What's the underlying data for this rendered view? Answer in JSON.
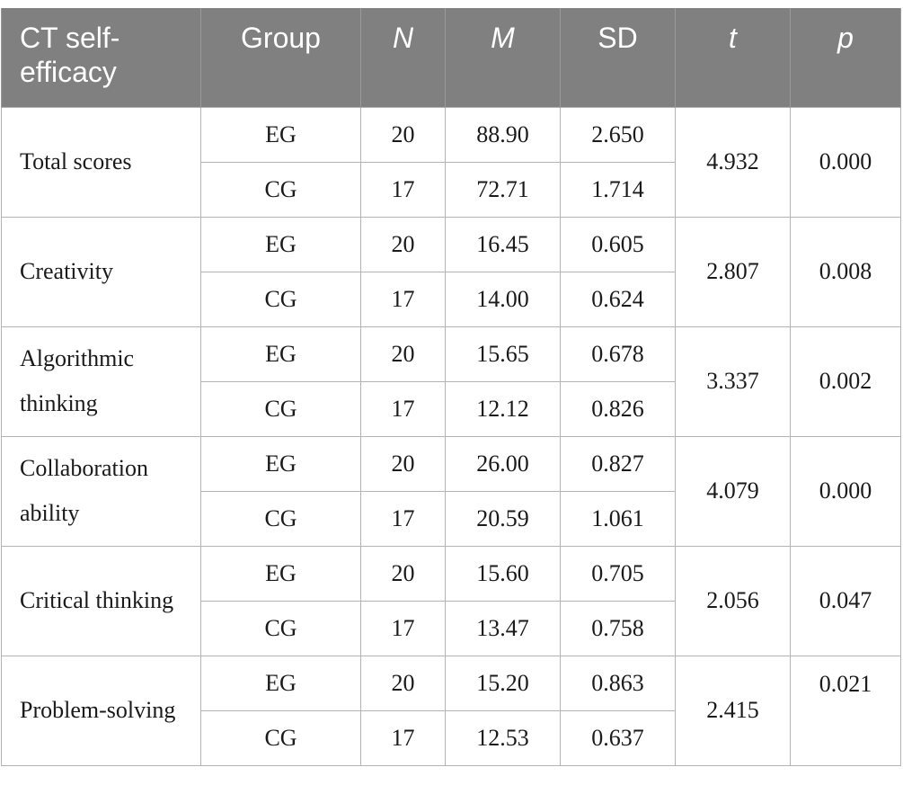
{
  "table": {
    "headers": {
      "construct": "CT self-efficacy",
      "group": "Group",
      "n": "N",
      "m": "M",
      "sd": "SD",
      "t": "t",
      "p": "p"
    },
    "rows": [
      {
        "construct": "Total scores",
        "t": "4.932",
        "p": "0.000",
        "groups": [
          {
            "group": "EG",
            "n": "20",
            "m": "88.90",
            "sd": "2.650"
          },
          {
            "group": "CG",
            "n": "17",
            "m": "72.71",
            "sd": "1.714"
          }
        ]
      },
      {
        "construct": "Creativity",
        "t": "2.807",
        "p": "0.008",
        "groups": [
          {
            "group": "EG",
            "n": "20",
            "m": "16.45",
            "sd": "0.605"
          },
          {
            "group": "CG",
            "n": "17",
            "m": "14.00",
            "sd": "0.624"
          }
        ]
      },
      {
        "construct": "Algorithmic thinking",
        "t": "3.337",
        "p": "0.002",
        "groups": [
          {
            "group": "EG",
            "n": "20",
            "m": "15.65",
            "sd": "0.678"
          },
          {
            "group": "CG",
            "n": "17",
            "m": "12.12",
            "sd": "0.826"
          }
        ]
      },
      {
        "construct": "Collaboration ability",
        "t": "4.079",
        "p": "0.000",
        "groups": [
          {
            "group": "EG",
            "n": "20",
            "m": "26.00",
            "sd": "0.827"
          },
          {
            "group": "CG",
            "n": "17",
            "m": "20.59",
            "sd": "1.061"
          }
        ]
      },
      {
        "construct": "Critical thinking",
        "t": "2.056",
        "p": "0.047",
        "groups": [
          {
            "group": "EG",
            "n": "20",
            "m": "15.60",
            "sd": "0.705"
          },
          {
            "group": "CG",
            "n": "17",
            "m": "13.47",
            "sd": "0.758"
          }
        ]
      },
      {
        "construct": "Problem-solving",
        "t": "2.415",
        "p": "0.021",
        "groups": [
          {
            "group": "EG",
            "n": "20",
            "m": "15.20",
            "sd": "0.863"
          },
          {
            "group": "CG",
            "n": "17",
            "m": "12.53",
            "sd": "0.637"
          }
        ]
      }
    ]
  }
}
